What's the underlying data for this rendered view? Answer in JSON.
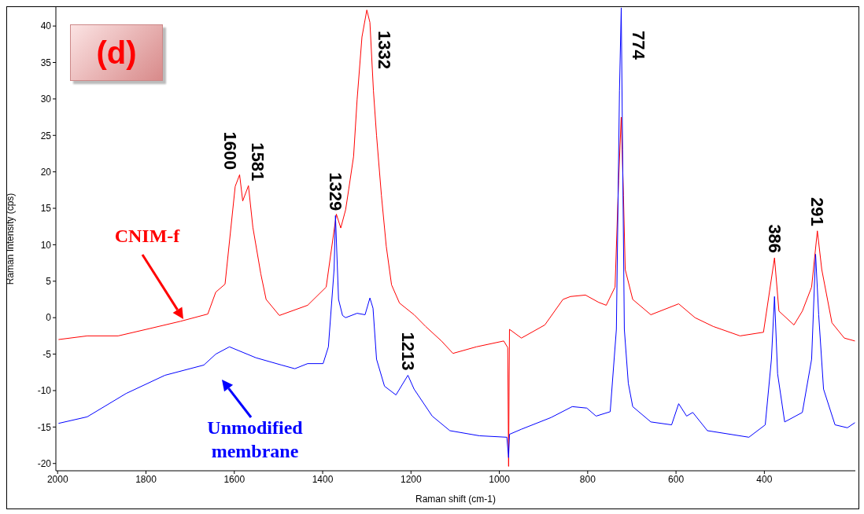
{
  "chart_data": {
    "type": "line",
    "xlabel": "Raman shift (cm-1)",
    "ylabel": "Raman Intensity (cps)",
    "xlim": [
      2004,
      194
    ],
    "xticks": [
      2000,
      1800,
      1600,
      1400,
      1200,
      1000,
      800,
      600,
      400
    ],
    "ylim": [
      -21,
      42.6
    ],
    "yticks": [
      -20,
      -15,
      -10,
      -5,
      0,
      5,
      10,
      15,
      20,
      25,
      30,
      35,
      40
    ],
    "marker": "none",
    "line_style": "solid",
    "series": [
      {
        "name": "CNIM-f",
        "color": "#ff0000",
        "x": [
          1998,
          1933,
          1863,
          1792,
          1722,
          1660,
          1642,
          1621,
          1598,
          1588,
          1581,
          1568,
          1558,
          1540,
          1528,
          1498,
          1434,
          1392,
          1369,
          1359,
          1348,
          1341,
          1330,
          1322,
          1311,
          1300,
          1293,
          1285,
          1278,
          1267,
          1256,
          1244,
          1226,
          1193,
          1167,
          1131,
          1105,
          1052,
          990,
          981,
          979,
          977,
          950,
          897,
          856,
          839,
          805,
          775,
          758,
          738,
          730,
          724,
          719,
          715,
          698,
          657,
          594,
          557,
          516,
          455,
          402,
          377,
          367,
          333,
          314,
          293,
          280,
          270,
          247,
          219,
          195
        ],
        "values": [
          -3,
          -2.5,
          -2.5,
          -1.5,
          -0.5,
          0.5,
          3.5,
          4.6,
          18,
          19.6,
          16,
          18.1,
          12.4,
          6,
          2.5,
          0.3,
          1.7,
          4.2,
          14.2,
          12.3,
          14.8,
          17.6,
          22.1,
          29.9,
          38.5,
          42.2,
          40.5,
          31.1,
          25,
          16.8,
          9.8,
          4.5,
          2,
          0.4,
          -1.2,
          -3.2,
          -4.9,
          -4,
          -3.2,
          -4.1,
          -20.4,
          -1.6,
          -2.8,
          -1,
          2.5,
          2.9,
          3.1,
          2.1,
          1.7,
          4.2,
          18.8,
          27.5,
          16.8,
          6.6,
          2.5,
          0.4,
          1.9,
          0,
          -1.2,
          -2.5,
          -2,
          8.2,
          0.9,
          -1,
          0.9,
          4.2,
          11.9,
          6.6,
          -0.7,
          -2.8,
          -3.2
        ]
      },
      {
        "name": "Unmodified membrane",
        "color": "#0000ff",
        "x": [
          1998,
          1933,
          1845,
          1757,
          1669,
          1642,
          1611,
          1551,
          1493,
          1463,
          1434,
          1399,
          1387,
          1374,
          1371,
          1364,
          1355,
          1348,
          1322,
          1304,
          1293,
          1286,
          1278,
          1260,
          1234,
          1207,
          1193,
          1152,
          1112,
          1045,
          983,
          979,
          977,
          950,
          883,
          835,
          802,
          781,
          749,
          735,
          728,
          724,
          721,
          717,
          708,
          698,
          657,
          610,
          594,
          576,
          562,
          529,
          435,
          398,
          384,
          377,
          370,
          354,
          314,
          293,
          284,
          277,
          266,
          240,
          212,
          195
        ],
        "values": [
          -14.5,
          -13.6,
          -10.4,
          -7.9,
          -6.5,
          -5,
          -4,
          -5.5,
          -6.5,
          -7,
          -6.3,
          -6.3,
          -4,
          6.7,
          14,
          2.5,
          0.3,
          0,
          0.6,
          0.4,
          2.7,
          1.3,
          -5.7,
          -9.4,
          -10.6,
          -7.9,
          -9.8,
          -13.5,
          -15.5,
          -16.2,
          -16.4,
          -19.2,
          -16,
          -15.3,
          -13.7,
          -12.2,
          -12.4,
          -13.5,
          -12.9,
          -1.6,
          31.1,
          42.5,
          23,
          -1.6,
          -9,
          -12.2,
          -14.3,
          -14.7,
          -11.8,
          -13.5,
          -13,
          -15.5,
          -16.4,
          -14.7,
          -5.7,
          2.9,
          -7.7,
          -14.3,
          -13,
          -5.7,
          8.7,
          0.4,
          -9.8,
          -14.7,
          -15.1,
          -14.4
        ]
      }
    ],
    "annotations": [
      "(d)",
      {
        "text": "1600",
        "x": 1588,
        "y": 19.6
      },
      {
        "text": "1581",
        "x": 1568,
        "y": 18.1
      },
      {
        "text": "1332",
        "x": 1300,
        "y": 42.2
      },
      {
        "text": "1329",
        "x": 1371,
        "y": 14
      },
      {
        "text": "1213",
        "x": 1207,
        "y": -7.9
      },
      {
        "text": "774",
        "x": 724,
        "y": 42.5
      },
      {
        "text": "386",
        "x": 377,
        "y": 8.2
      },
      {
        "text": "291",
        "x": 280,
        "y": 11.9
      }
    ]
  }
}
